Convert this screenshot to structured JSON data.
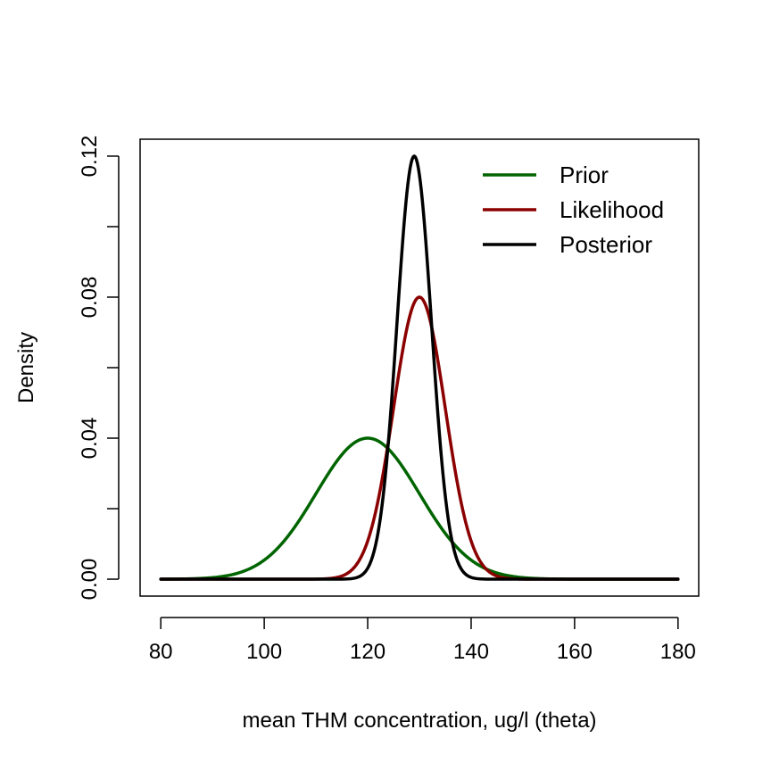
{
  "chart_data": {
    "type": "line",
    "title": "",
    "xlabel": "mean THM concentration, ug/l (theta)",
    "ylabel": "Density",
    "xlim": [
      76,
      184
    ],
    "ylim": [
      -0.0048,
      0.1248
    ],
    "x_ticks": [
      80,
      100,
      120,
      140,
      160,
      180
    ],
    "x_tick_labels": [
      "80",
      "100",
      "120",
      "140",
      "160",
      "180"
    ],
    "y_ticks": [
      0.0,
      0.02,
      0.04,
      0.06,
      0.08,
      0.1,
      0.12
    ],
    "y_tick_labels": [
      "0.00",
      "",
      "0.04",
      "",
      "0.08",
      "",
      "0.12"
    ],
    "grid": false,
    "legend_position": "top-right",
    "x_range": [
      80,
      180
    ],
    "series": [
      {
        "name": "Prior",
        "color": "#006400",
        "mean": 120,
        "sd": 10,
        "peak": 0.04
      },
      {
        "name": "Likelihood",
        "color": "#8B0000",
        "mean": 130,
        "sd": 5,
        "peak": 0.08
      },
      {
        "name": "Posterior",
        "color": "#000000",
        "mean": 129,
        "sd": 3.33,
        "peak": 0.12
      }
    ]
  }
}
